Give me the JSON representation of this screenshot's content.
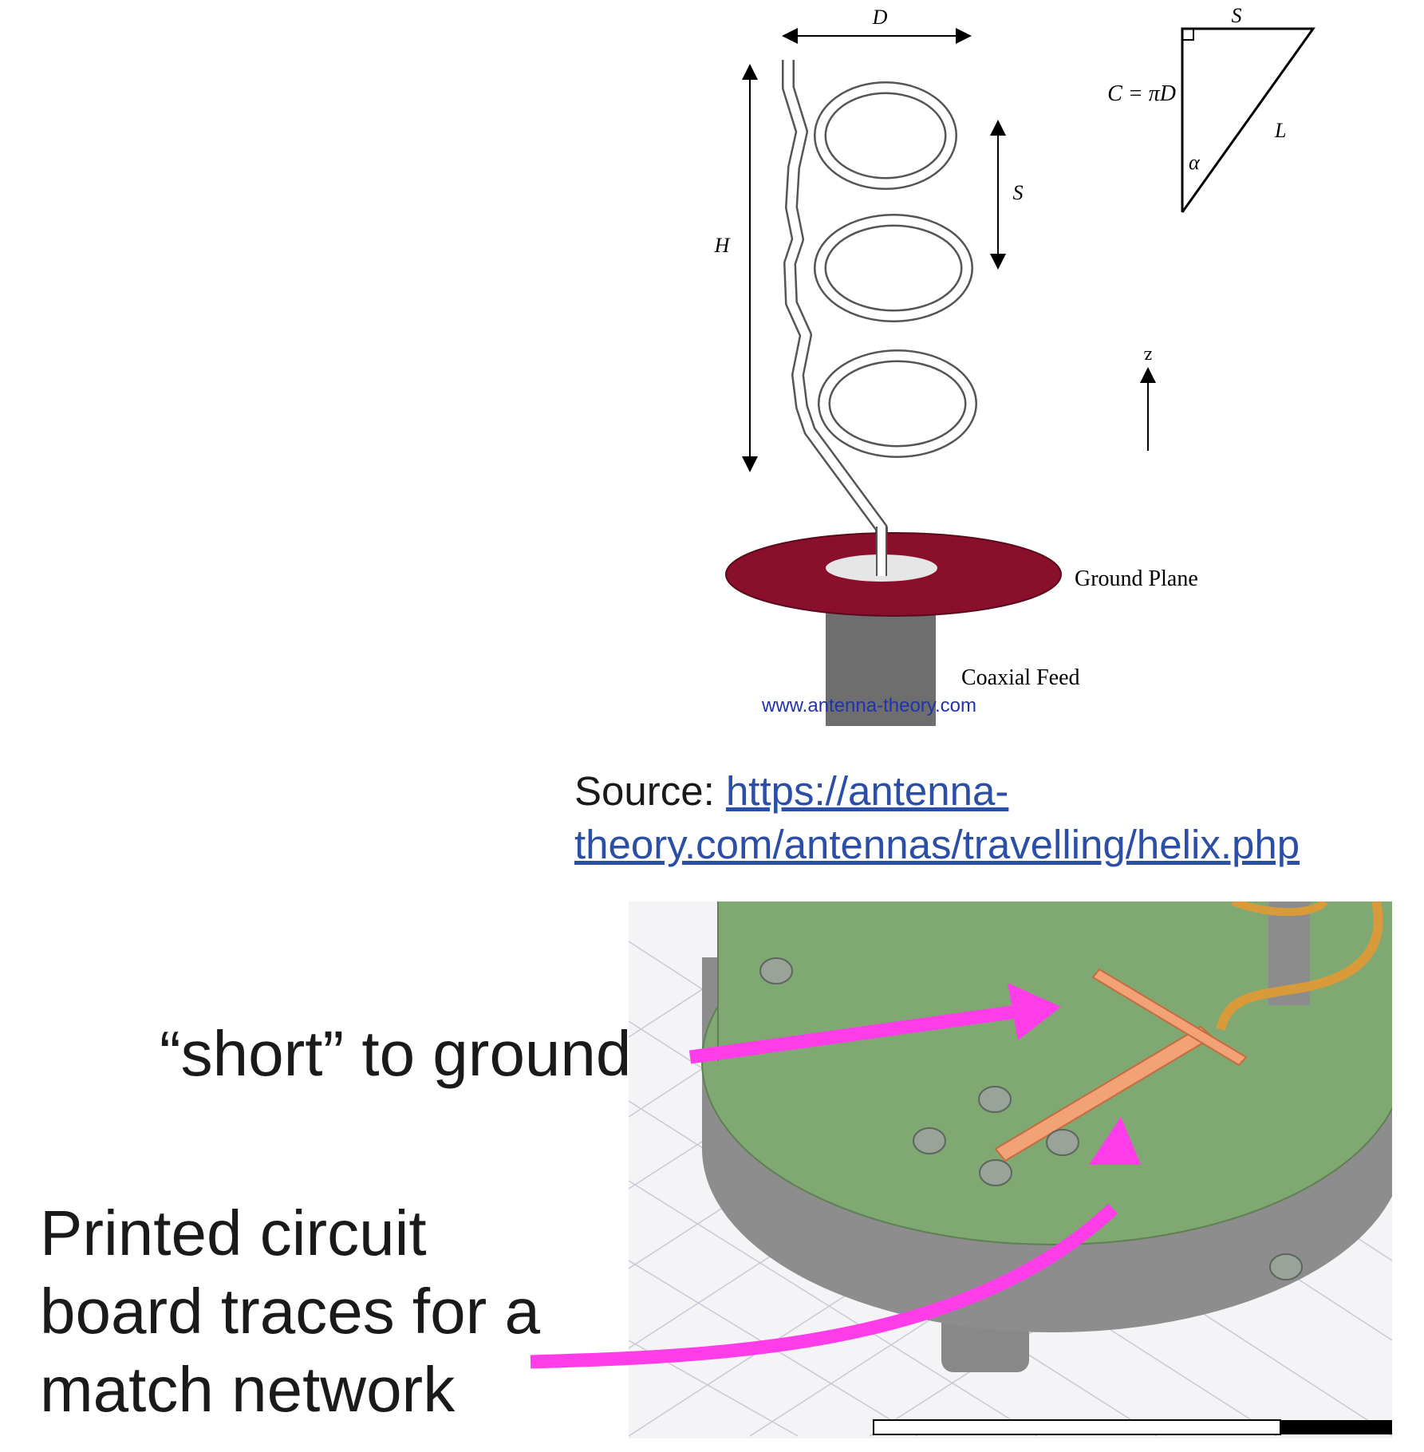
{
  "helix_diagram": {
    "label_D": "D",
    "label_H": "H",
    "label_S_spacing": "S",
    "label_S_triangle": "S",
    "label_C": "C = πD",
    "label_L": "L",
    "label_alpha": "α",
    "label_z": "z",
    "label_ground_plane": "Ground Plane",
    "label_coaxial_feed": "Coaxial Feed",
    "watermark": "www.antenna-theory.com"
  },
  "source": {
    "prefix": "Source: ",
    "link_text": "https://antenna-theory.com/antennas/travelling/helix.php"
  },
  "callouts": {
    "short_to_ground": "“short” to ground",
    "pcb_traces": "Printed circuit board traces for a match network"
  },
  "colors": {
    "ground_plane": "#8a0f2b",
    "coax": "#6e6e6e",
    "board": "#7fa872",
    "trace": "#f2a276",
    "arrow": "#ff3de8",
    "link": "#2b4ea6"
  }
}
